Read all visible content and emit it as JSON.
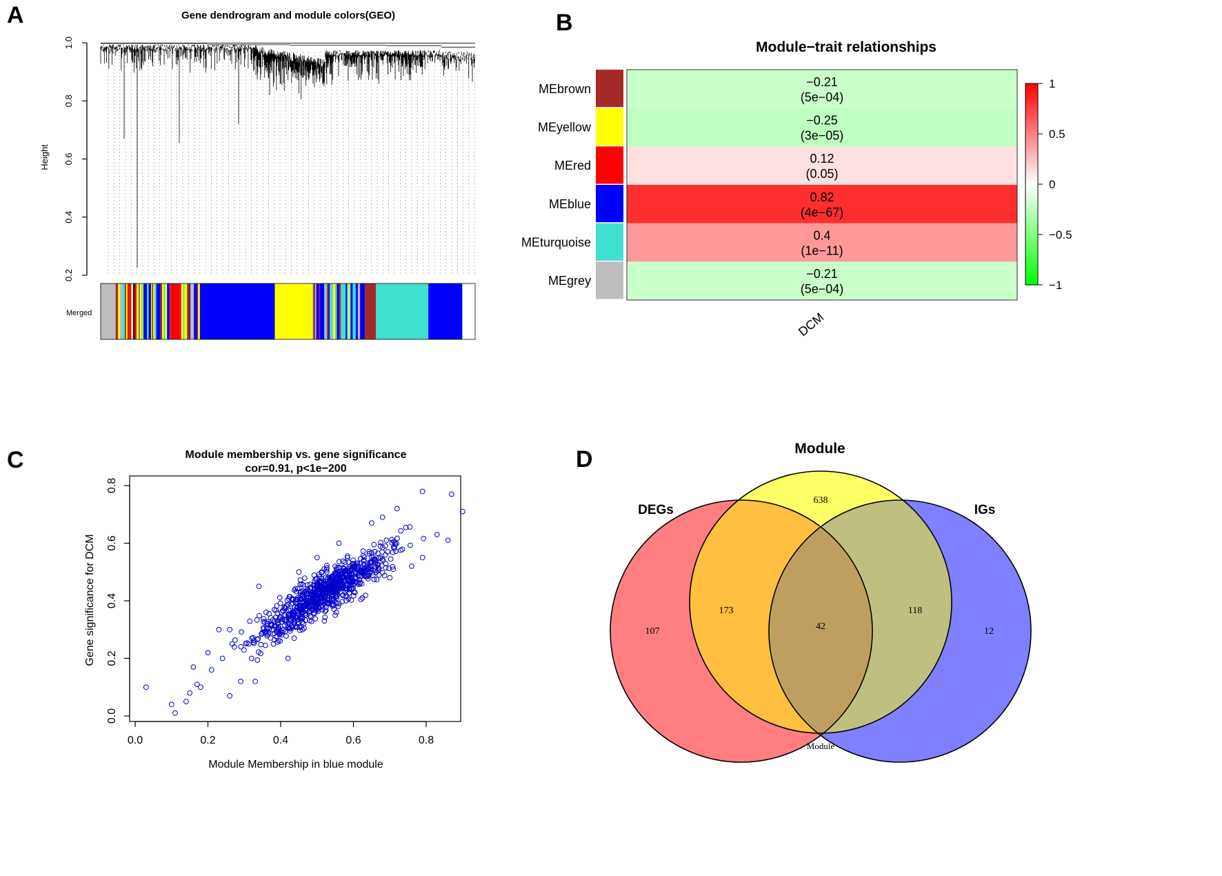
{
  "panels": {
    "a": {
      "label": "A"
    },
    "b": {
      "label": "B"
    },
    "c": {
      "label": "C"
    },
    "d": {
      "label": "D"
    }
  },
  "chart_data": [
    {
      "panel": "A",
      "type": "dendrogram",
      "title": "Gene dendrogram and module colors(GEO)",
      "ylabel": "Height",
      "ylim": [
        0.2,
        1.0
      ],
      "yticks": [
        "0.2",
        "0.4",
        "0.6",
        "0.8",
        "1.0"
      ],
      "color_row_label": "Merged",
      "module_blocks": [
        {
          "module": "grey",
          "color": "#bebebe",
          "share": 0.04
        },
        {
          "module": "mixed",
          "color": "mixed",
          "share": 0.145
        },
        {
          "module": "red",
          "color": "#ff0000",
          "share": 0.03
        },
        {
          "module": "mixed",
          "color": "mixed",
          "share": 0.05
        },
        {
          "module": "blue",
          "color": "#0000ff",
          "share": 0.2
        },
        {
          "module": "yellow",
          "color": "#ffff00",
          "share": 0.1
        },
        {
          "module": "mixed",
          "color": "mixed",
          "share": 0.14
        },
        {
          "module": "brown",
          "color": "#a52a2a",
          "share": 0.03
        },
        {
          "module": "turquoise",
          "color": "#40e0d0",
          "share": 0.14
        },
        {
          "module": "blue",
          "color": "#0000ff",
          "share": 0.09
        }
      ]
    },
    {
      "panel": "B",
      "type": "heatmap",
      "title": "Module−trait relationships",
      "xlabel": "DCM",
      "rows": [
        {
          "name": "MEbrown",
          "module_color": "#a52a2a",
          "cor": -0.21,
          "cor_label": "−0.21",
          "p_label": "(5e−04)"
        },
        {
          "name": "MEyellow",
          "module_color": "#ffff00",
          "cor": -0.25,
          "cor_label": "−0.25",
          "p_label": "(3e−05)"
        },
        {
          "name": "MEred",
          "module_color": "#ff0000",
          "cor": 0.12,
          "cor_label": "0.12",
          "p_label": "(0.05)"
        },
        {
          "name": "MEblue",
          "module_color": "#0000ff",
          "cor": 0.82,
          "cor_label": "0.82",
          "p_label": "(4e−67)"
        },
        {
          "name": "MEturquoise",
          "module_color": "#40e0d0",
          "cor": 0.4,
          "cor_label": "0.4",
          "p_label": "(1e−11)"
        },
        {
          "name": "MEgrey",
          "module_color": "#bebebe",
          "cor": -0.21,
          "cor_label": "−0.21",
          "p_label": "(5e−04)"
        }
      ],
      "colorbar": {
        "range": [
          -1,
          1
        ],
        "ticks": [
          "1",
          "0.5",
          "0",
          "−0.5",
          "−1"
        ]
      }
    },
    {
      "panel": "C",
      "type": "scatter",
      "title": "Module membership vs. gene significance",
      "subtitle": "cor=0.91, p<1e−200",
      "xlabel": "Module Membership in blue module",
      "ylabel": "Gene significance for  DCM",
      "xlim": [
        0.0,
        0.92
      ],
      "ylim": [
        0.0,
        0.8
      ],
      "xticks": [
        "0.0",
        "0.2",
        "0.4",
        "0.6",
        "0.8"
      ],
      "yticks": [
        "0.0",
        "0.2",
        "0.4",
        "0.6",
        "0.8"
      ],
      "point_color": "#0000cd",
      "n_points": 880,
      "trend": {
        "slope": 0.78,
        "intercept": 0.02,
        "cor": 0.91
      },
      "points": [
        [
          0.03,
          0.1
        ],
        [
          0.1,
          0.04
        ],
        [
          0.11,
          0.01
        ],
        [
          0.14,
          0.05
        ],
        [
          0.15,
          0.08
        ],
        [
          0.16,
          0.17
        ],
        [
          0.17,
          0.11
        ],
        [
          0.18,
          0.1
        ],
        [
          0.2,
          0.22
        ],
        [
          0.21,
          0.16
        ],
        [
          0.23,
          0.3
        ],
        [
          0.24,
          0.2
        ],
        [
          0.26,
          0.07
        ],
        [
          0.26,
          0.3
        ],
        [
          0.29,
          0.12
        ],
        [
          0.32,
          0.2
        ],
        [
          0.33,
          0.12
        ],
        [
          0.34,
          0.45
        ],
        [
          0.36,
          0.36
        ],
        [
          0.38,
          0.25
        ],
        [
          0.42,
          0.2
        ],
        [
          0.45,
          0.5
        ],
        [
          0.46,
          0.3
        ],
        [
          0.5,
          0.55
        ],
        [
          0.52,
          0.33
        ],
        [
          0.55,
          0.35
        ],
        [
          0.56,
          0.6
        ],
        [
          0.58,
          0.4
        ],
        [
          0.62,
          0.5
        ],
        [
          0.65,
          0.67
        ],
        [
          0.68,
          0.69
        ],
        [
          0.7,
          0.48
        ],
        [
          0.72,
          0.72
        ],
        [
          0.76,
          0.52
        ],
        [
          0.79,
          0.55
        ],
        [
          0.79,
          0.78
        ],
        [
          0.83,
          0.63
        ],
        [
          0.86,
          0.61
        ],
        [
          0.87,
          0.77
        ],
        [
          0.9,
          0.71
        ]
      ]
    },
    {
      "panel": "D",
      "type": "venn",
      "sets": [
        {
          "name": "DEGs",
          "color": "#ff7f80"
        },
        {
          "name": "Module",
          "color": "#ffff66"
        },
        {
          "name": "IGs",
          "color": "#7f7fff"
        }
      ],
      "regions": {
        "DEGs_only": "107",
        "Module_only": "638",
        "IGs_only": "12",
        "DEGs_Module": "173",
        "Module_IGs": "118",
        "DEGs_Module_IGs": "42"
      },
      "bottom_label": "Module"
    }
  ]
}
